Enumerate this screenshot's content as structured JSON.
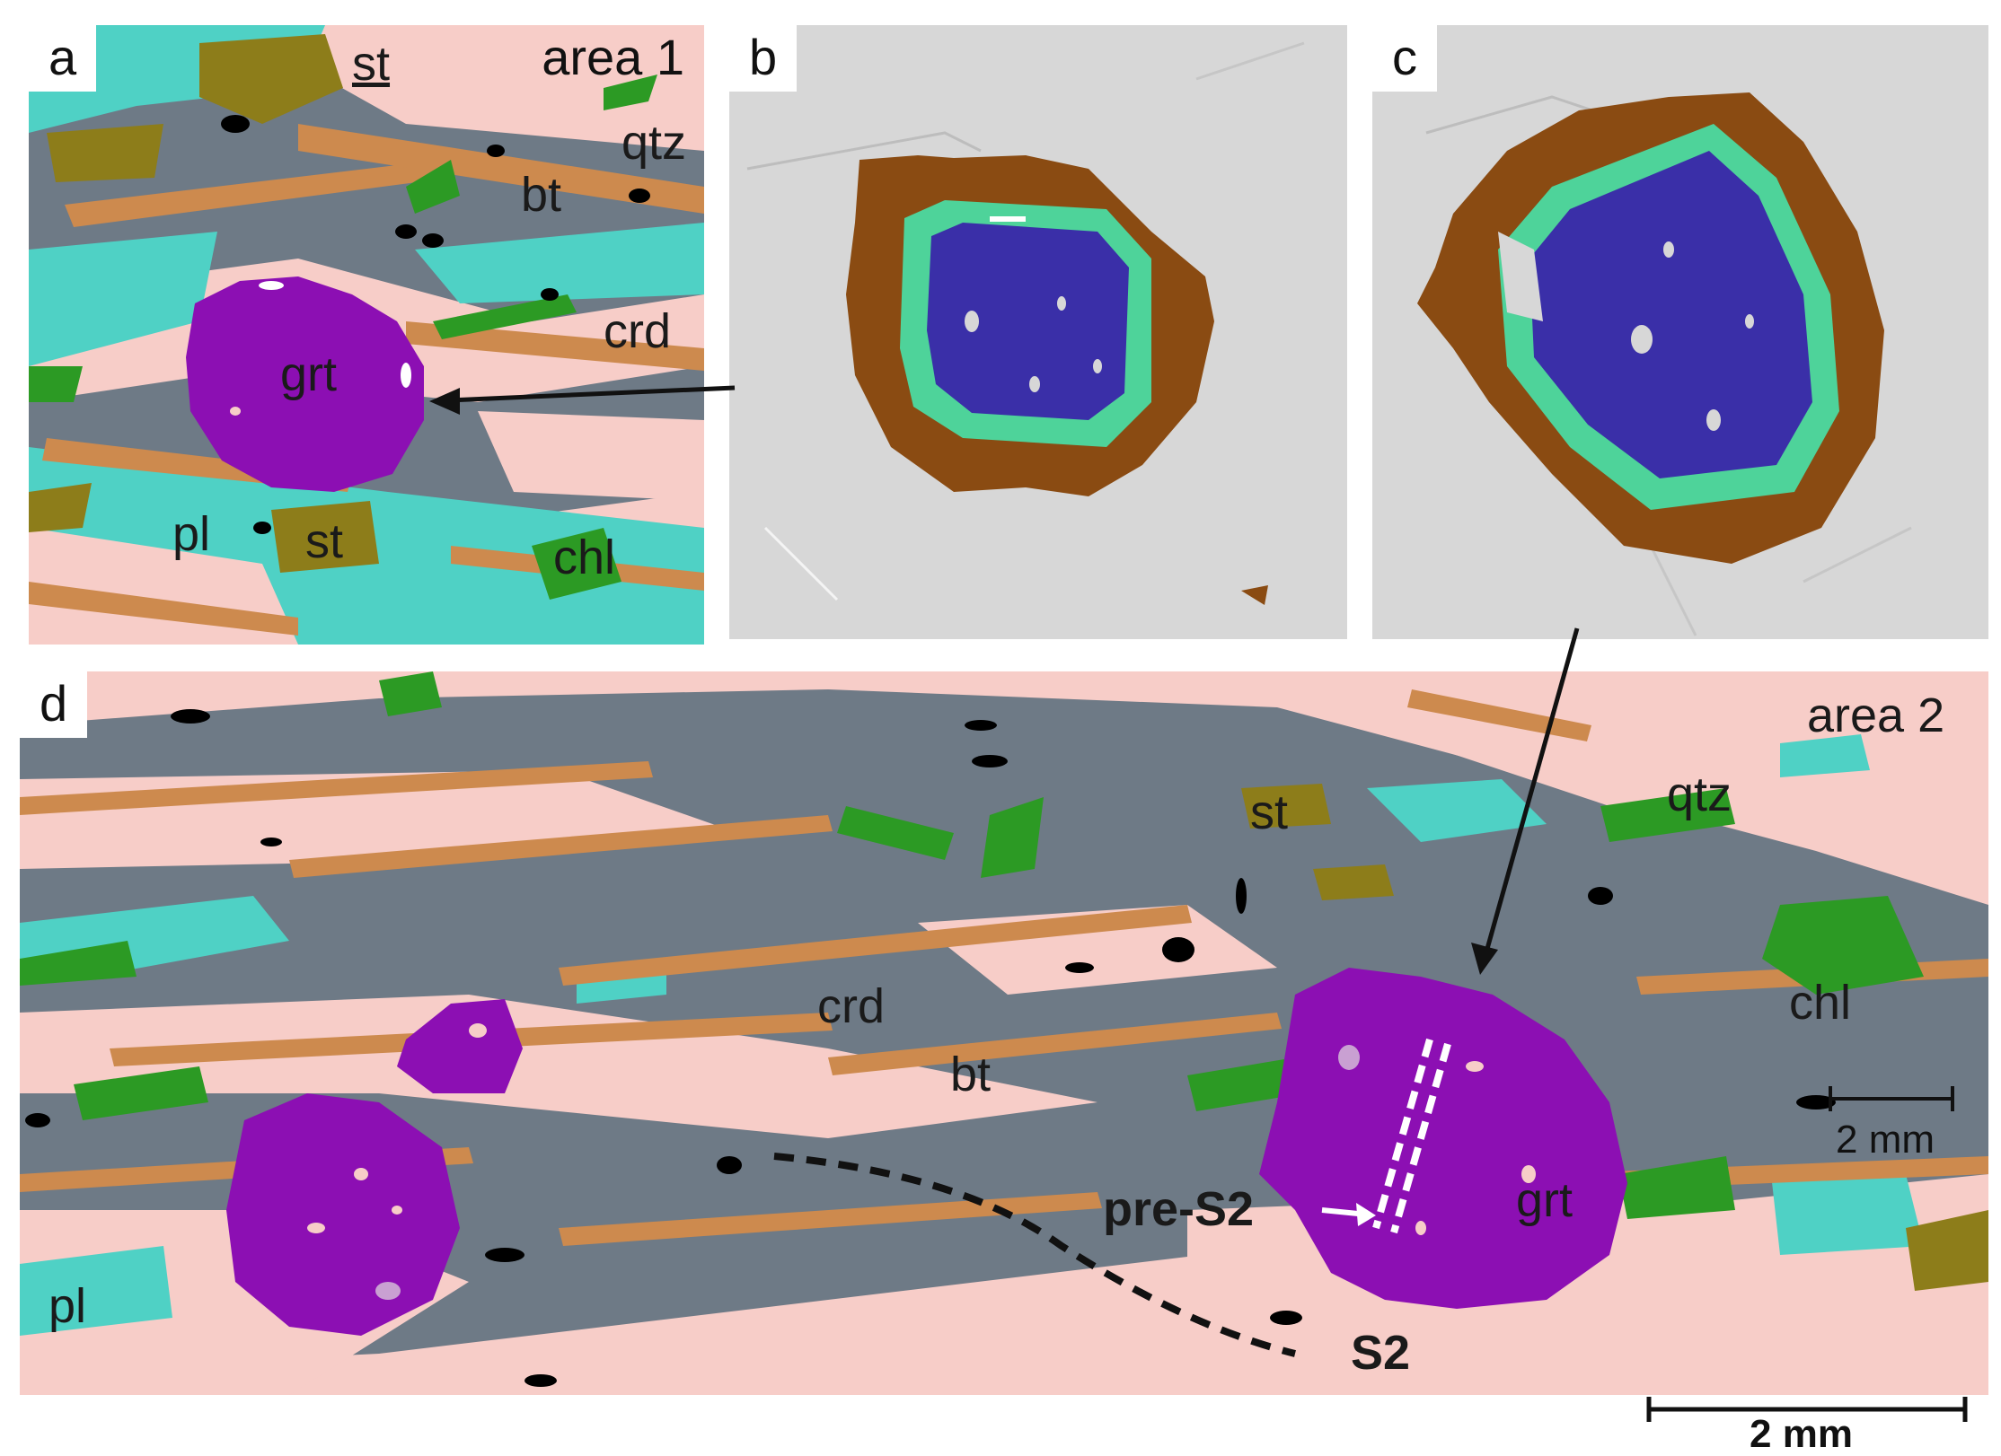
{
  "panels": {
    "a": {
      "letter": "a",
      "area": "area 1",
      "labels": {
        "st_top": "st",
        "qtz": "qtz",
        "bt": "bt",
        "crd": "crd",
        "grt": "grt",
        "pl": "pl",
        "st_bottom": "st",
        "chl": "chl"
      }
    },
    "b": {
      "letter": "b"
    },
    "c": {
      "letter": "c"
    },
    "d": {
      "letter": "d",
      "area": "area 2",
      "labels": {
        "qtz": "qtz",
        "st": "st",
        "crd": "crd",
        "bt": "bt",
        "chl": "chl",
        "grt": "grt",
        "pl": "pl",
        "pre_s2": "pre-S2",
        "s2": "S2"
      },
      "inner_scale": "2 mm"
    }
  },
  "scale_bar": "2 mm",
  "colors": {
    "quartz": "#f7cdc8",
    "cordierite": "#6e7a86",
    "biotite": "#cd8a4e",
    "plagioclase": "#4fd1c5",
    "chlorite": "#2c9a24",
    "staurolite": "#8d7d1a",
    "garnet": "#8c0fb3",
    "opaque": "#000000",
    "rim": "#8a4b12",
    "zone_green": "#4ed39a",
    "core_blue": "#3a2fa8",
    "matrix_grey": "#d7d7d7"
  }
}
